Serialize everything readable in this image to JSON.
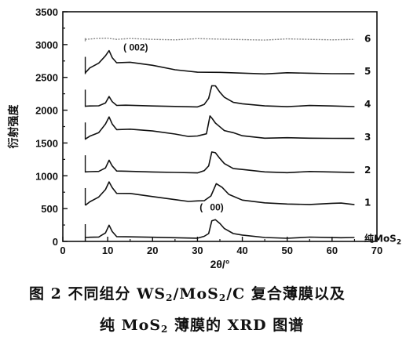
{
  "chart_data": {
    "type": "line",
    "xlabel": "2θ/°",
    "ylabel": "衍射强度",
    "xlim": [
      0,
      70
    ],
    "ylim": [
      0,
      3500
    ],
    "xticks": [
      "0",
      "10",
      "20",
      "30",
      "40",
      "50",
      "60",
      "70"
    ],
    "yticks": [
      "0",
      "500",
      "1000",
      "1500",
      "2000",
      "2500",
      "3000",
      "3500"
    ],
    "grid": false,
    "legend": "none",
    "series_color": "#111111",
    "series": [
      {
        "name": "纯MoS2",
        "label": "纯MoS",
        "label_sub": "2",
        "offset": 0,
        "x": [
          5,
          6,
          8,
          9.5,
          10.3,
          11,
          12,
          14,
          20,
          25,
          30,
          31.5,
          32.5,
          33.2,
          34,
          35,
          36,
          38,
          40,
          45,
          50,
          55,
          60,
          62,
          65
        ],
        "y": [
          60,
          60,
          70,
          140,
          240,
          150,
          80,
          60,
          60,
          60,
          60,
          70,
          120,
          320,
          320,
          270,
          200,
          130,
          90,
          60,
          55,
          55,
          55,
          60,
          60
        ]
      },
      {
        "name": "1",
        "label": "1",
        "offset": 550,
        "x": [
          5,
          6,
          8,
          9.5,
          10.3,
          11,
          12,
          15,
          20,
          25,
          28,
          30,
          31.5,
          33,
          34.2,
          35.5,
          37,
          40,
          45,
          50,
          55,
          60,
          62,
          65
        ],
        "y": [
          550,
          600,
          680,
          800,
          900,
          820,
          740,
          720,
          680,
          640,
          620,
          610,
          620,
          700,
          870,
          820,
          720,
          640,
          580,
          570,
          570,
          570,
          580,
          560
        ]
      },
      {
        "name": "2",
        "label": "2",
        "offset": 1050,
        "x": [
          5,
          6,
          8,
          9.5,
          10.3,
          11,
          12,
          14,
          20,
          25,
          30,
          31.5,
          32.5,
          33.2,
          34,
          35,
          36,
          38,
          40,
          45,
          50,
          55,
          60,
          65
        ],
        "y": [
          1060,
          1060,
          1070,
          1130,
          1230,
          1150,
          1080,
          1060,
          1055,
          1055,
          1055,
          1070,
          1150,
          1370,
          1340,
          1260,
          1190,
          1120,
          1090,
          1060,
          1055,
          1055,
          1055,
          1050
        ]
      },
      {
        "name": "3",
        "label": "3",
        "offset": 1550,
        "x": [
          5,
          6,
          8,
          9.5,
          10.3,
          11,
          12,
          15,
          20,
          25,
          28,
          30,
          32,
          32.8,
          33.3,
          34,
          35,
          36,
          38,
          40,
          45,
          50,
          55,
          60,
          65
        ],
        "y": [
          1560,
          1600,
          1660,
          1800,
          1890,
          1790,
          1710,
          1700,
          1680,
          1640,
          1610,
          1600,
          1640,
          1920,
          1860,
          1800,
          1750,
          1700,
          1650,
          1610,
          1580,
          1570,
          1570,
          1575,
          1570
        ]
      },
      {
        "name": "4",
        "label": "4",
        "offset": 2050,
        "x": [
          5,
          6,
          8,
          9.5,
          10.3,
          11,
          12,
          14,
          20,
          25,
          30,
          31.5,
          32.5,
          33.2,
          34,
          35,
          36,
          38,
          40,
          45,
          50,
          55,
          60,
          65
        ],
        "y": [
          2060,
          2060,
          2070,
          2120,
          2200,
          2130,
          2080,
          2065,
          2060,
          2060,
          2060,
          2080,
          2180,
          2380,
          2360,
          2270,
          2200,
          2130,
          2090,
          2065,
          2060,
          2060,
          2060,
          2055
        ]
      },
      {
        "name": "5",
        "label": "5",
        "offset": 2550,
        "x": [
          5,
          6,
          8,
          9.5,
          10.3,
          11,
          12,
          15,
          20,
          25,
          30,
          35,
          40,
          45,
          50,
          55,
          60,
          65
        ],
        "y": [
          2570,
          2640,
          2720,
          2840,
          2900,
          2800,
          2730,
          2720,
          2680,
          2620,
          2590,
          2570,
          2565,
          2560,
          2560,
          2560,
          2560,
          2555
        ]
      },
      {
        "name": "6",
        "label": "6",
        "offset": 3050,
        "x": [
          5,
          8,
          10,
          12,
          15,
          20,
          25,
          30,
          35,
          40,
          45,
          50,
          55,
          60,
          65
        ],
        "y": [
          3080,
          3090,
          3100,
          3090,
          3085,
          3080,
          3080,
          3080,
          3080,
          3080,
          3080,
          3080,
          3080,
          3080,
          3080
        ]
      }
    ],
    "annotations": [
      {
        "text": "( 002)",
        "x": 13.5,
        "y": 2910
      },
      {
        "text": "(",
        "x": 30.5,
        "y": 470
      },
      {
        "text": "00)",
        "x": 32.8,
        "y": 470
      }
    ]
  },
  "caption": {
    "line1_a": "图 2   不同组分 WS",
    "line1_s1": "2",
    "line1_b": "/MoS",
    "line1_s2": "2",
    "line1_c": "/C 复合薄膜以及",
    "line2_a": "纯 MoS",
    "line2_s1": "2",
    "line2_b": " 薄膜的 XRD 图谱"
  }
}
